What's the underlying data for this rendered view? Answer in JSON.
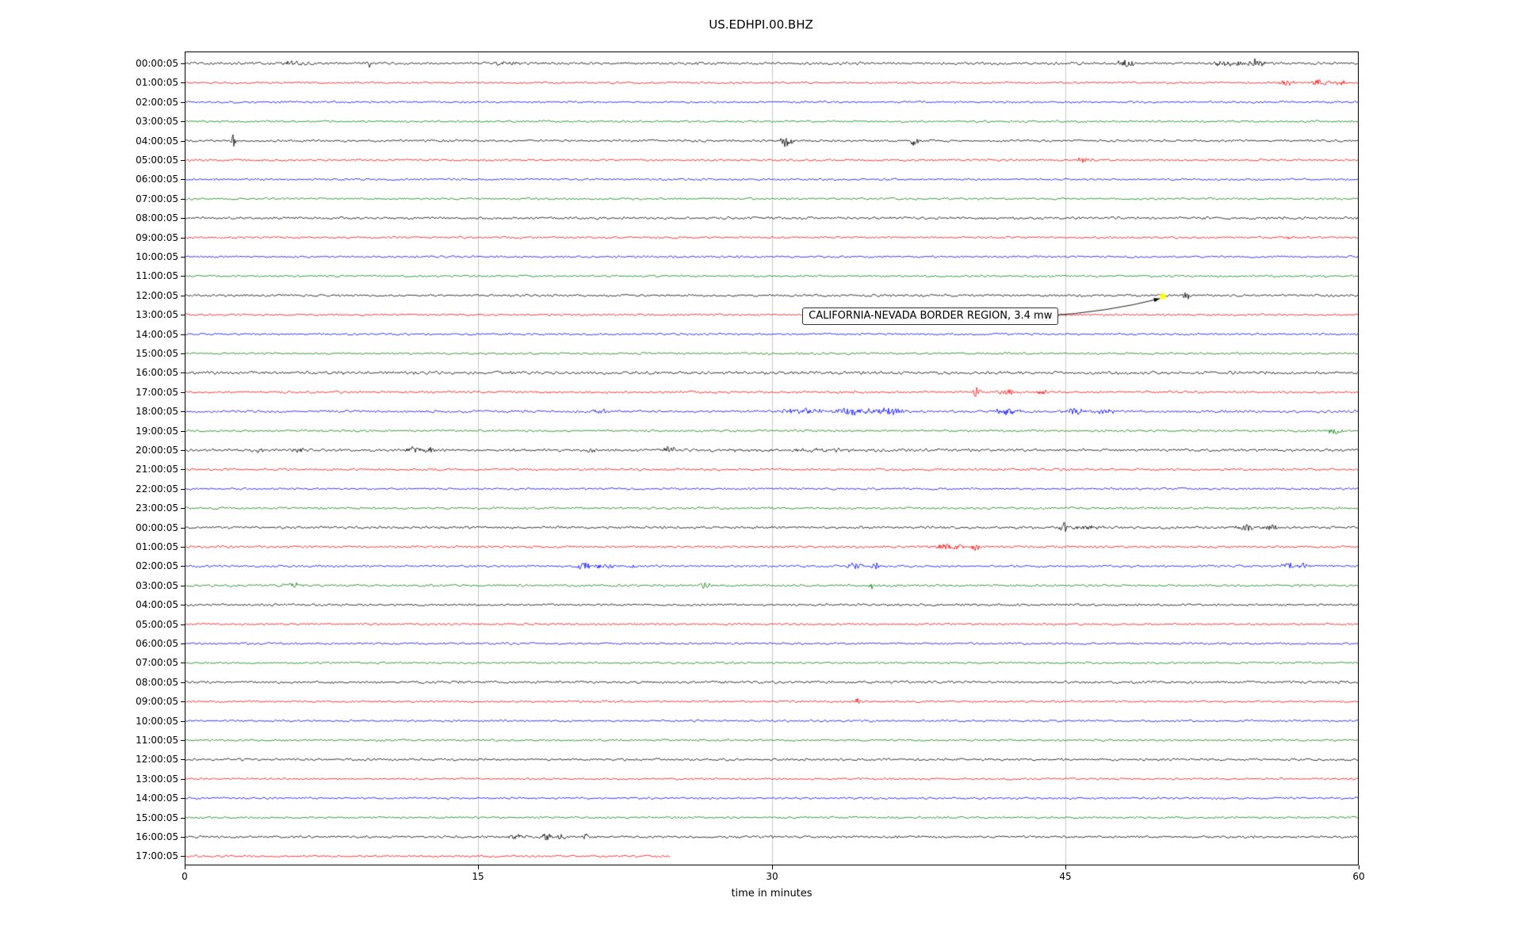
{
  "chart_data": {
    "type": "line",
    "subtype": "seismogram-helicorder",
    "title": "US.EDHPI.00.BHZ",
    "xlabel": "time in minutes",
    "x_range": [
      0,
      60
    ],
    "x_ticks": [
      0,
      15,
      30,
      45,
      60
    ],
    "grid": true,
    "legend": "none",
    "trace_color_cycle": [
      "#000000",
      "#ff0000",
      "#0000ff",
      "#008000"
    ],
    "annotation": {
      "text": "CALIFORNIA-NEVADA BORDER REGION, 3.4 mw",
      "trace_index": 12,
      "marker_minute": 50.0,
      "marker_color": "#ffff00",
      "marker_shape": "star"
    },
    "traces": [
      {
        "label": "00:00:05",
        "noise": 1.1,
        "events": [
          {
            "t": 5.5,
            "a": 2.5,
            "w": 0.4
          },
          {
            "t": 9.4,
            "a": 5,
            "w": 0.07
          },
          {
            "t": 16.5,
            "a": 2,
            "w": 0.45
          },
          {
            "t": 48.2,
            "a": 3.5,
            "w": 0.35
          },
          {
            "t": 53.4,
            "a": 3,
            "w": 0.5
          },
          {
            "t": 54.6,
            "a": 4,
            "w": 0.4
          }
        ]
      },
      {
        "label": "01:00:05",
        "noise": 0.9,
        "events": [
          {
            "t": 56.3,
            "a": 3,
            "w": 0.3
          },
          {
            "t": 58.1,
            "a": 3.5,
            "w": 0.35
          },
          {
            "t": 59.1,
            "a": 2.5,
            "w": 0.2
          }
        ]
      },
      {
        "label": "02:00:05",
        "noise": 0.9,
        "events": []
      },
      {
        "label": "03:00:05",
        "noise": 0.9,
        "events": [
          {
            "t": 59.6,
            "a": 2,
            "w": 0.12
          }
        ]
      },
      {
        "label": "04:00:05",
        "noise": 1.0,
        "events": [
          {
            "t": 2.5,
            "a": 7,
            "w": 0.08
          },
          {
            "t": 30.8,
            "a": 7,
            "w": 0.22
          },
          {
            "t": 37.3,
            "a": 5,
            "w": 0.15
          }
        ]
      },
      {
        "label": "05:00:05",
        "noise": 0.9,
        "events": [
          {
            "t": 45.9,
            "a": 2.5,
            "w": 0.3
          }
        ]
      },
      {
        "label": "06:00:05",
        "noise": 0.9,
        "events": []
      },
      {
        "label": "07:00:05",
        "noise": 0.9,
        "events": []
      },
      {
        "label": "08:00:05",
        "noise": 1.1,
        "events": []
      },
      {
        "label": "09:00:05",
        "noise": 0.9,
        "events": [
          {
            "t": 56.5,
            "a": 1.5,
            "w": 0.1
          }
        ]
      },
      {
        "label": "10:00:05",
        "noise": 0.9,
        "events": []
      },
      {
        "label": "11:00:05",
        "noise": 0.9,
        "events": []
      },
      {
        "label": "12:00:05",
        "noise": 1.0,
        "events": [
          {
            "t": 51.2,
            "a": 4,
            "w": 0.18
          }
        ]
      },
      {
        "label": "13:00:05",
        "noise": 0.9,
        "events": []
      },
      {
        "label": "14:00:05",
        "noise": 0.9,
        "events": []
      },
      {
        "label": "15:00:05",
        "noise": 0.9,
        "events": []
      },
      {
        "label": "16:00:05",
        "noise": 1.3,
        "events": []
      },
      {
        "label": "17:00:05",
        "noise": 1.0,
        "events": [
          {
            "t": 40.5,
            "a": 6,
            "w": 0.15
          },
          {
            "t": 42.0,
            "a": 3,
            "w": 0.3
          },
          {
            "t": 43.8,
            "a": 4,
            "w": 0.15
          }
        ]
      },
      {
        "label": "18:00:05",
        "noise": 1.1,
        "events": [
          {
            "t": 21.3,
            "a": 2.5,
            "w": 0.3
          },
          {
            "t": 31.5,
            "a": 3,
            "w": 0.8
          },
          {
            "t": 34.0,
            "a": 4.5,
            "w": 0.5
          },
          {
            "t": 36.0,
            "a": 3.5,
            "w": 0.8
          },
          {
            "t": 42.0,
            "a": 3,
            "w": 0.5
          },
          {
            "t": 45.5,
            "a": 3.5,
            "w": 0.4
          },
          {
            "t": 47.0,
            "a": 2.5,
            "w": 0.3
          }
        ]
      },
      {
        "label": "19:00:05",
        "noise": 0.9,
        "events": [
          {
            "t": 58.8,
            "a": 3.5,
            "w": 0.25
          }
        ]
      },
      {
        "label": "20:00:05",
        "noise": 1.2,
        "events": [
          {
            "t": 3.9,
            "a": 2.5,
            "w": 0.2
          },
          {
            "t": 5.9,
            "a": 3,
            "w": 0.25
          },
          {
            "t": 11.8,
            "a": 3,
            "w": 0.4
          },
          {
            "t": 12.6,
            "a": 2.5,
            "w": 0.2
          },
          {
            "t": 20.8,
            "a": 2.5,
            "w": 0.2
          },
          {
            "t": 24.8,
            "a": 3,
            "w": 0.3
          },
          {
            "t": 32.0,
            "a": 1.2,
            "w": 3.0
          }
        ]
      },
      {
        "label": "21:00:05",
        "noise": 1.0,
        "events": []
      },
      {
        "label": "22:00:05",
        "noise": 0.9,
        "events": []
      },
      {
        "label": "23:00:05",
        "noise": 1.0,
        "events": []
      },
      {
        "label": "00:00:05",
        "noise": 1.1,
        "events": [
          {
            "t": 44.9,
            "a": 6,
            "w": 0.15
          },
          {
            "t": 46.0,
            "a": 2,
            "w": 0.5
          },
          {
            "t": 54.3,
            "a": 3.5,
            "w": 0.3
          },
          {
            "t": 55.5,
            "a": 3,
            "w": 0.3
          }
        ]
      },
      {
        "label": "01:00:05",
        "noise": 1.0,
        "events": [
          {
            "t": 38.8,
            "a": 3,
            "w": 0.3
          },
          {
            "t": 39.5,
            "a": 3.5,
            "w": 0.2
          },
          {
            "t": 40.4,
            "a": 6,
            "w": 0.12
          }
        ]
      },
      {
        "label": "02:00:05",
        "noise": 1.0,
        "events": [
          {
            "t": 20.4,
            "a": 4.5,
            "w": 0.2
          },
          {
            "t": 21.5,
            "a": 2.5,
            "w": 0.4
          },
          {
            "t": 23.0,
            "a": 2,
            "w": 0.2
          },
          {
            "t": 34.2,
            "a": 4.5,
            "w": 0.25
          },
          {
            "t": 35.3,
            "a": 4,
            "w": 0.15
          },
          {
            "t": 56.4,
            "a": 5,
            "w": 0.2
          },
          {
            "t": 57.2,
            "a": 3,
            "w": 0.2
          }
        ]
      },
      {
        "label": "03:00:05",
        "noise": 1.0,
        "events": [
          {
            "t": 5.5,
            "a": 2,
            "w": 0.4
          },
          {
            "t": 26.6,
            "a": 4,
            "w": 0.2
          },
          {
            "t": 35.1,
            "a": 5,
            "w": 0.08
          }
        ]
      },
      {
        "label": "04:00:05",
        "noise": 1.0,
        "events": []
      },
      {
        "label": "05:00:05",
        "noise": 0.9,
        "events": []
      },
      {
        "label": "06:00:05",
        "noise": 0.9,
        "events": []
      },
      {
        "label": "07:00:05",
        "noise": 0.9,
        "events": []
      },
      {
        "label": "08:00:05",
        "noise": 1.1,
        "events": []
      },
      {
        "label": "09:00:05",
        "noise": 0.9,
        "events": [
          {
            "t": 34.4,
            "a": 3.5,
            "w": 0.12
          }
        ]
      },
      {
        "label": "10:00:05",
        "noise": 0.9,
        "events": []
      },
      {
        "label": "11:00:05",
        "noise": 0.9,
        "events": []
      },
      {
        "label": "12:00:05",
        "noise": 1.0,
        "events": [
          {
            "t": 16.0,
            "a": 1.5,
            "w": 0.08
          }
        ]
      },
      {
        "label": "13:00:05",
        "noise": 0.9,
        "events": []
      },
      {
        "label": "14:00:05",
        "noise": 0.9,
        "events": []
      },
      {
        "label": "15:00:05",
        "noise": 0.9,
        "events": []
      },
      {
        "label": "16:00:05",
        "noise": 1.0,
        "events": [
          {
            "t": 17.0,
            "a": 2.5,
            "w": 0.3
          },
          {
            "t": 18.5,
            "a": 4,
            "w": 0.2
          },
          {
            "t": 19.3,
            "a": 4,
            "w": 0.15
          },
          {
            "t": 20.5,
            "a": 6,
            "w": 0.08
          }
        ]
      },
      {
        "label": "17:00:05",
        "noise": 0.9,
        "end": 24.8,
        "events": []
      }
    ]
  }
}
